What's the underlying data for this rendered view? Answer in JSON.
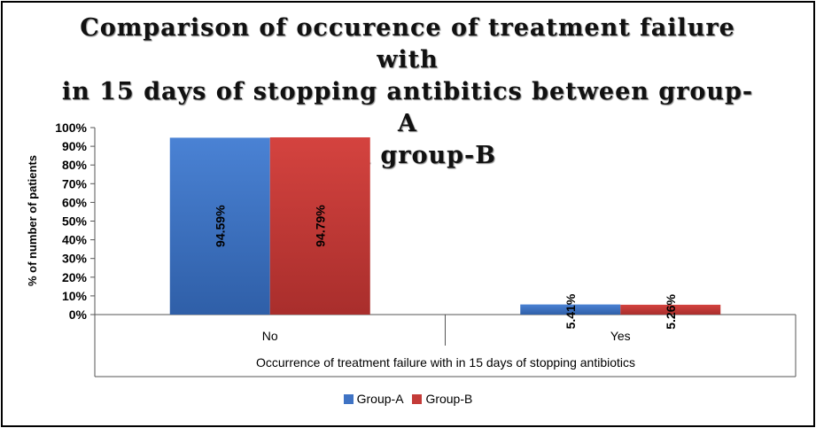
{
  "chart_data": {
    "type": "bar",
    "title": "Comparison of occurence of treatment failure with in 15 days of stopping antibitics between group-A and group-B",
    "title_lines": [
      "Comparison of occurence of treatment failure with",
      "in 15 days of stopping antibitics between group-A",
      "and group-B"
    ],
    "xlabel": "Occurrence of treatment failure with in 15 days of stopping antibiotics",
    "ylabel": "% of number of patients",
    "categories": [
      "No",
      "Yes"
    ],
    "ylim": [
      0,
      100
    ],
    "yticks": [
      "0%",
      "10%",
      "20%",
      "30%",
      "40%",
      "50%",
      "60%",
      "70%",
      "80%",
      "90%",
      "100%"
    ],
    "series": [
      {
        "name": "Group-A",
        "values": [
          94.59,
          5.41
        ],
        "labels": [
          "94.59%",
          "5.41%"
        ],
        "color": "#3f73c4"
      },
      {
        "name": "Group-B",
        "values": [
          94.79,
          5.26
        ],
        "labels": [
          "94.79%",
          "5.26%"
        ],
        "color": "#c43b38"
      }
    ],
    "grid": false,
    "legend_position": "bottom"
  }
}
